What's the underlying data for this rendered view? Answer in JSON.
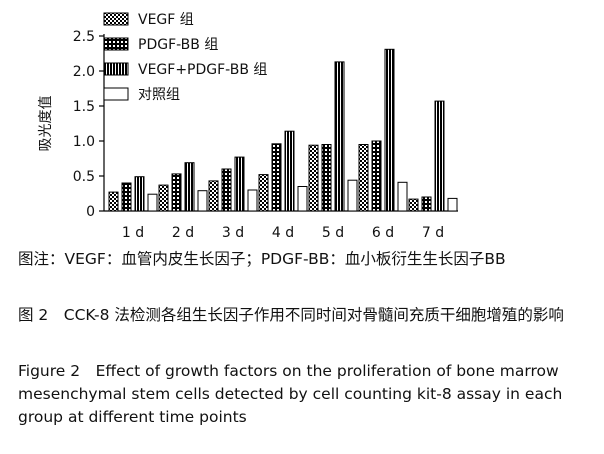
{
  "chart_data": {
    "type": "bar",
    "categories": [
      "1 d",
      "2 d",
      "3 d",
      "4 d",
      "5 d",
      "6 d",
      "7 d"
    ],
    "series": [
      {
        "name": "VEGF 组",
        "pattern": "checker",
        "values": [
          0.27,
          0.37,
          0.43,
          0.52,
          0.94,
          0.95,
          0.17
        ]
      },
      {
        "name": "PDGF-BB 组",
        "pattern": "grid",
        "values": [
          0.4,
          0.53,
          0.6,
          0.96,
          0.95,
          1.0,
          0.2
        ]
      },
      {
        "name": "VEGF+PDGF-BB 组",
        "pattern": "vstripe",
        "values": [
          0.49,
          0.69,
          0.77,
          1.14,
          2.13,
          2.31,
          1.57
        ]
      },
      {
        "name": "对照组",
        "pattern": "open",
        "values": [
          0.24,
          0.29,
          0.3,
          0.35,
          0.44,
          0.41,
          0.18
        ]
      }
    ],
    "ylabel": "吸光度值",
    "xlabel": "",
    "ylim": [
      0,
      2.5
    ],
    "yticks": [
      "0",
      "0.5",
      "1.0",
      "1.5",
      "2.0",
      "2.5"
    ],
    "grid": false,
    "legend_position": "top-left",
    "colors": {
      "bar_fill": "#000000",
      "background": "#ffffff"
    }
  },
  "caption": {
    "note": "图注：VEGF：血管内皮生长因子；PDGF-BB：血小板衍生生长因子BB",
    "title_zh": "图 2　CCK-8 法检测各组生长因子作用不同时间对骨髓间充质干细胞增殖的影响",
    "title_en": "Figure 2　Effect of growth factors on the proliferation of bone marrow mesenchymal stem cells detected by cell counting kit-8 assay in each group at different time points"
  }
}
